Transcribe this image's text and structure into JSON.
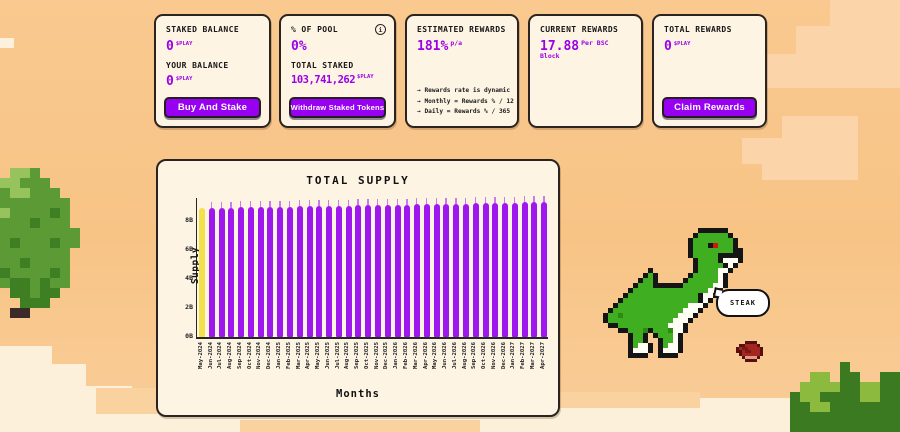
{
  "cards": {
    "staked": {
      "label1": "STAKED BALANCE",
      "value1": "0",
      "unit1": "$PLAY",
      "label2": "YOUR BALANCE",
      "value2": "0",
      "unit2": "$PLAY",
      "button": "Buy And Stake"
    },
    "pool": {
      "label1": "% OF POOL",
      "info_glyph": "i",
      "value1": "0%",
      "label2": "TOTAL STAKED",
      "value2": "103,741,262",
      "unit2": "$PLAY",
      "button": "Withdraw Staked Tokens"
    },
    "estimated": {
      "label": "ESTIMATED REWARDS",
      "value": "181%",
      "suffix": "p/a",
      "notes": [
        "→  Rewards rate is dynamic",
        "→  Monthly = Rewards % / 12",
        "→  Daily = Rewards % / 365"
      ]
    },
    "current": {
      "label": "CURRENT REWARDS",
      "value": "17.88",
      "suffix": "Per BSC Block"
    },
    "total": {
      "label": "TOTAL REWARDS",
      "value": "0",
      "unit": "$PLAY",
      "button": "Claim Rewards"
    }
  },
  "chart_data": {
    "type": "bar",
    "title": "TOTAL SUPPLY",
    "xlabel": "Months",
    "ylabel": "Supply",
    "unit": "B",
    "categories": [
      "May-2024",
      "Jun-2024",
      "Jul-2024",
      "Aug-2024",
      "Sep-2024",
      "Oct-2024",
      "Nov-2024",
      "Dec-2024",
      "Jan-2025",
      "Feb-2025",
      "Mar-2025",
      "Apr-2025",
      "May-2025",
      "Jun-2025",
      "Jul-2025",
      "Aug-2025",
      "Sep-2025",
      "Oct-2025",
      "Nov-2025",
      "Dec-2025",
      "Jan-2026",
      "Feb-2026",
      "Mar-2026",
      "Apr-2026",
      "May-2026",
      "Jun-2026",
      "Jul-2026",
      "Aug-2026",
      "Sep-2026",
      "Oct-2026",
      "Nov-2026",
      "Dec-2026",
      "Jan-2027",
      "Feb-2027",
      "Mar-2027",
      "Apr-2027"
    ],
    "values": [
      8.86,
      8.87,
      8.88,
      8.9,
      8.91,
      8.92,
      8.93,
      8.94,
      8.96,
      8.97,
      8.98,
      8.99,
      9.0,
      9.02,
      9.03,
      9.04,
      9.05,
      9.06,
      9.08,
      9.09,
      9.1,
      9.11,
      9.12,
      9.14,
      9.15,
      9.16,
      9.17,
      9.18,
      9.2,
      9.21,
      9.22,
      9.23,
      9.24,
      9.26,
      9.27,
      9.28
    ],
    "yticks": [
      "0B",
      "2B",
      "4B",
      "6B",
      "8B"
    ],
    "ylim": [
      0,
      9.7
    ],
    "grid": false,
    "legend": "none",
    "highlight_index": 0,
    "bar_color": "#9d17ee",
    "highlight_color": "#f2e14a"
  },
  "scene": {
    "speech_bubble": "STEAK",
    "dino": "green-pixel-trex",
    "steak": "pixel-steak"
  },
  "colors": {
    "accent_purple": "#9c00e8",
    "button_purple": "#9800f2",
    "card_bg": "#fdf4e4",
    "sky": "#f8c78c"
  }
}
